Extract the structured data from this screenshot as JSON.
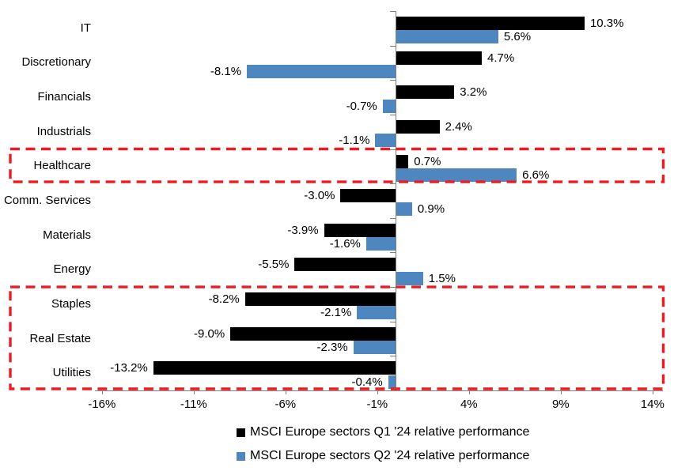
{
  "chart_data": {
    "type": "bar",
    "orientation": "horizontal",
    "title": "",
    "categories": [
      "IT",
      "Discretionary",
      "Financials",
      "Industrials",
      "Healthcare",
      "Comm. Services",
      "Materials",
      "Energy",
      "Staples",
      "Real Estate",
      "Utilities"
    ],
    "series": [
      {
        "name": "MSCI Europe sectors Q1 '24 relative performance",
        "color": "#000000",
        "values": [
          10.3,
          4.7,
          3.2,
          2.4,
          0.7,
          -3.0,
          -3.9,
          -5.5,
          -8.2,
          -9.0,
          -13.2
        ],
        "value_labels": [
          "10.3%",
          "4.7%",
          "3.2%",
          "2.4%",
          "0.7%",
          "-3.0%",
          "-3.9%",
          "-5.5%",
          "-8.2%",
          "-9.0%",
          "-13.2%"
        ]
      },
      {
        "name": "MSCI Europe sectors Q2 '24 relative performance",
        "color": "#4E86C0",
        "values": [
          5.6,
          -8.1,
          -0.7,
          -1.1,
          6.6,
          0.9,
          -1.6,
          1.5,
          -2.1,
          -2.3,
          -0.4
        ],
        "value_labels": [
          "5.6%",
          "-8.1%",
          "-0.7%",
          "-1.1%",
          "6.6%",
          "0.9%",
          "-1.6%",
          "1.5%",
          "-2.1%",
          "-2.3%",
          "-0.4%"
        ]
      }
    ],
    "x_ticks": [
      "-16%",
      "-11%",
      "-6%",
      "-1%",
      "4%",
      "9%",
      "14%"
    ],
    "x_tick_values": [
      -16,
      -11,
      -6,
      -1,
      4,
      9,
      14
    ],
    "xlim": [
      -16.4,
      14.6
    ],
    "grid": false,
    "legend_position": "bottom",
    "axis_color": "#808080",
    "highlight_boxes": [
      {
        "sectors": [
          "Healthcare"
        ],
        "color": "#EC1C24",
        "style": "dashed"
      },
      {
        "sectors": [
          "Staples",
          "Real Estate",
          "Utilities"
        ],
        "color": "#EC1C24",
        "style": "dashed"
      }
    ]
  }
}
